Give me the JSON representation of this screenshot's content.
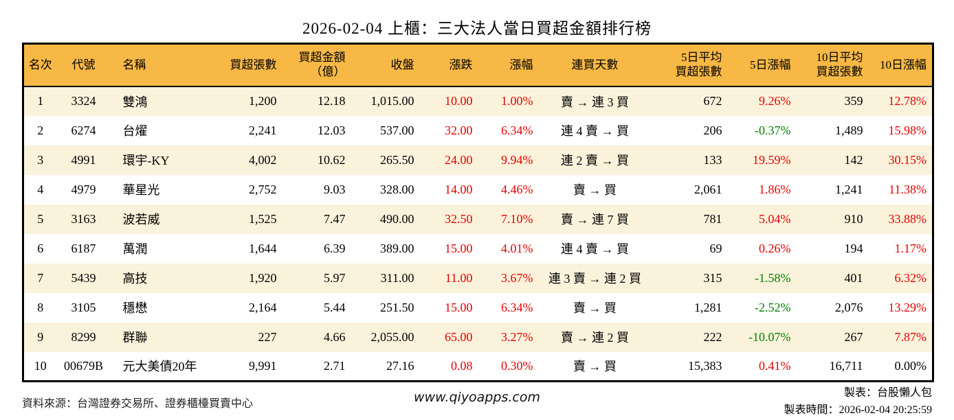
{
  "title": "2026-02-04 上櫃：三大法人當日買超金額排行榜",
  "colors": {
    "up": "#e60000",
    "down": "#008000",
    "flat": "#000000",
    "header_bg": "#f7b845",
    "row_stripe": "#fbf2dc",
    "table_border": "#000000"
  },
  "table": {
    "columns": [
      "名次",
      "代號",
      "名稱",
      "買超張數",
      "買超金額\n（億）",
      "收盤",
      "漲跌",
      "漲幅",
      "連買天數",
      "5日平均\n買超張數",
      "5日漲幅",
      "10日平均\n買超張數",
      "10日漲幅"
    ],
    "rows": [
      {
        "rank": "1",
        "code": "3324",
        "name": "雙鴻",
        "buy_qty": "1,200",
        "buy_amt": "12.18",
        "close": "1,015.00",
        "change": "10.00",
        "change_pct": "1.00%",
        "streak": "賣 → 連 3 買",
        "avg5": "672",
        "pct5": "9.26%",
        "avg10": "359",
        "pct10": "12.78%",
        "change_color": "up",
        "change_pct_color": "up",
        "pct5_color": "up",
        "pct10_color": "up"
      },
      {
        "rank": "2",
        "code": "6274",
        "name": "台燿",
        "buy_qty": "2,241",
        "buy_amt": "12.03",
        "close": "537.00",
        "change": "32.00",
        "change_pct": "6.34%",
        "streak": "連 4 賣 → 買",
        "avg5": "206",
        "pct5": "-0.37%",
        "avg10": "1,489",
        "pct10": "15.98%",
        "change_color": "up",
        "change_pct_color": "up",
        "pct5_color": "down",
        "pct10_color": "up"
      },
      {
        "rank": "3",
        "code": "4991",
        "name": "環宇-KY",
        "buy_qty": "4,002",
        "buy_amt": "10.62",
        "close": "265.50",
        "change": "24.00",
        "change_pct": "9.94%",
        "streak": "連 2 賣 → 買",
        "avg5": "133",
        "pct5": "19.59%",
        "avg10": "142",
        "pct10": "30.15%",
        "change_color": "up",
        "change_pct_color": "up",
        "pct5_color": "up",
        "pct10_color": "up"
      },
      {
        "rank": "4",
        "code": "4979",
        "name": "華星光",
        "buy_qty": "2,752",
        "buy_amt": "9.03",
        "close": "328.00",
        "change": "14.00",
        "change_pct": "4.46%",
        "streak": "賣 → 買",
        "avg5": "2,061",
        "pct5": "1.86%",
        "avg10": "1,241",
        "pct10": "11.38%",
        "change_color": "up",
        "change_pct_color": "up",
        "pct5_color": "up",
        "pct10_color": "up"
      },
      {
        "rank": "5",
        "code": "3163",
        "name": "波若威",
        "buy_qty": "1,525",
        "buy_amt": "7.47",
        "close": "490.00",
        "change": "32.50",
        "change_pct": "7.10%",
        "streak": "賣 → 連 7 買",
        "avg5": "781",
        "pct5": "5.04%",
        "avg10": "910",
        "pct10": "33.88%",
        "change_color": "up",
        "change_pct_color": "up",
        "pct5_color": "up",
        "pct10_color": "up"
      },
      {
        "rank": "6",
        "code": "6187",
        "name": "萬潤",
        "buy_qty": "1,644",
        "buy_amt": "6.39",
        "close": "389.00",
        "change": "15.00",
        "change_pct": "4.01%",
        "streak": "連 4 賣 → 買",
        "avg5": "69",
        "pct5": "0.26%",
        "avg10": "194",
        "pct10": "1.17%",
        "change_color": "up",
        "change_pct_color": "up",
        "pct5_color": "up",
        "pct10_color": "up"
      },
      {
        "rank": "7",
        "code": "5439",
        "name": "高技",
        "buy_qty": "1,920",
        "buy_amt": "5.97",
        "close": "311.00",
        "change": "11.00",
        "change_pct": "3.67%",
        "streak": "連 3 賣 → 連 2 買",
        "avg5": "315",
        "pct5": "-1.58%",
        "avg10": "401",
        "pct10": "6.32%",
        "change_color": "up",
        "change_pct_color": "up",
        "pct5_color": "down",
        "pct10_color": "up"
      },
      {
        "rank": "8",
        "code": "3105",
        "name": "穩懋",
        "buy_qty": "2,164",
        "buy_amt": "5.44",
        "close": "251.50",
        "change": "15.00",
        "change_pct": "6.34%",
        "streak": "賣 → 買",
        "avg5": "1,281",
        "pct5": "-2.52%",
        "avg10": "2,076",
        "pct10": "13.29%",
        "change_color": "up",
        "change_pct_color": "up",
        "pct5_color": "down",
        "pct10_color": "up"
      },
      {
        "rank": "9",
        "code": "8299",
        "name": "群聯",
        "buy_qty": "227",
        "buy_amt": "4.66",
        "close": "2,055.00",
        "change": "65.00",
        "change_pct": "3.27%",
        "streak": "賣 → 連 2 買",
        "avg5": "222",
        "pct5": "-10.07%",
        "avg10": "267",
        "pct10": "7.87%",
        "change_color": "up",
        "change_pct_color": "up",
        "pct5_color": "down",
        "pct10_color": "up"
      },
      {
        "rank": "10",
        "code": "00679B",
        "name": "元大美債20年",
        "buy_qty": "9,991",
        "buy_amt": "2.71",
        "close": "27.16",
        "change": "0.08",
        "change_pct": "0.30%",
        "streak": "賣 → 買",
        "avg5": "15,383",
        "pct5": "0.41%",
        "avg10": "16,711",
        "pct10": "0.00%",
        "change_color": "up",
        "change_pct_color": "up",
        "pct5_color": "up",
        "pct10_color": "flat"
      }
    ]
  },
  "footer": {
    "source": "資料來源：台灣證券交易所、證券櫃檯買賣中心",
    "website": "www.qiyoapps.com",
    "maker": "製表：台股懶人包",
    "made_at": "製表時間：2026-02-04 20:25:59"
  }
}
